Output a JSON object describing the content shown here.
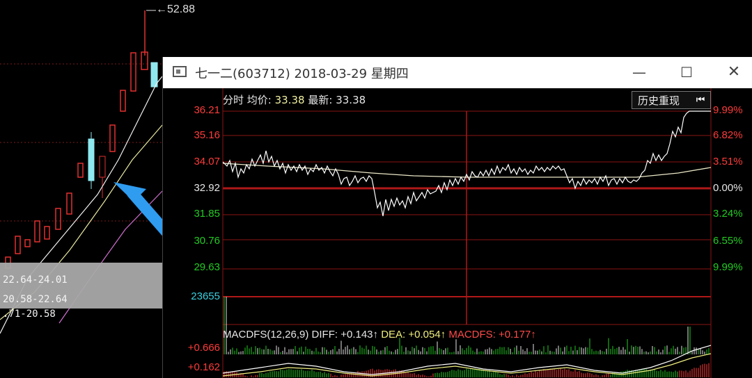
{
  "background_chart": {
    "peak_label": "52.88",
    "ma_rows": [
      "22.64-24.01",
      "20.58-22.64",
      ".71-20.58"
    ]
  },
  "window": {
    "title": "七一二(603712) 2018-03-29 星期四",
    "minimize_glyph": "—",
    "maximize_glyph": "☐",
    "close_glyph": "✕"
  },
  "intraday": {
    "label_fenshi": "分时",
    "label_avg": "均价:",
    "avg_value": "33.38",
    "label_latest": "最新:",
    "latest_value": "33.38",
    "history_button": "历史重现",
    "history_icon": "⏮",
    "left_axis": [
      "36.21",
      "35.16",
      "34.07",
      "32.92",
      "31.85",
      "30.76",
      "29.63"
    ],
    "right_axis": [
      "9.99%",
      "6.82%",
      "3.51%",
      "0.00%",
      "3.24%",
      "6.55%",
      "9.99%"
    ],
    "volume_max": "23655",
    "colors": {
      "up": "#ff3b3b",
      "down": "#22cc22",
      "neutral": "#e6e6e6",
      "volume": "#3ad0e0"
    }
  },
  "macd": {
    "label": "MACDFS(12,26,9)",
    "diff_label": "DIFF:",
    "diff_value": "+0.143↑",
    "dea_label": "DEA:",
    "dea_value": "+0.054↑",
    "macdfs_label": "MACDFS:",
    "macdfs_value": "+0.177↑",
    "axis": [
      "+0.666",
      "+0.162"
    ]
  }
}
